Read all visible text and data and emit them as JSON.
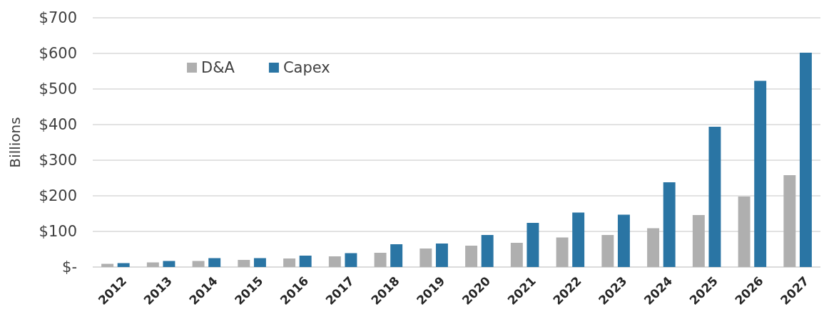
{
  "chart_data": {
    "type": "bar",
    "ylabel": "Billions",
    "categories": [
      "2012",
      "2013",
      "2014",
      "2015",
      "2016",
      "2017",
      "2018",
      "2019",
      "2020",
      "2021",
      "2022",
      "2023",
      "2024",
      "2025",
      "2026",
      "2027"
    ],
    "series": [
      {
        "name": "D&A",
        "color": "#afafaf",
        "values": [
          9,
          13,
          17,
          20,
          24,
          30,
          40,
          52,
          60,
          68,
          83,
          90,
          109,
          146,
          198,
          258
        ]
      },
      {
        "name": "Capex",
        "color": "#2a75a4",
        "values": [
          11,
          17,
          25,
          25,
          32,
          39,
          64,
          66,
          90,
          124,
          153,
          147,
          238,
          394,
          523,
          602
        ]
      }
    ],
    "ylim": [
      0,
      700
    ],
    "yticks": [
      {
        "value": 0,
        "label": "$-"
      },
      {
        "value": 100,
        "label": "$100"
      },
      {
        "value": 200,
        "label": "$200"
      },
      {
        "value": 300,
        "label": "$300"
      },
      {
        "value": 400,
        "label": "$400"
      },
      {
        "value": 500,
        "label": "$500"
      },
      {
        "value": 600,
        "label": "$600"
      },
      {
        "value": 700,
        "label": "$700"
      }
    ],
    "grid": "y",
    "legend": "top left"
  }
}
